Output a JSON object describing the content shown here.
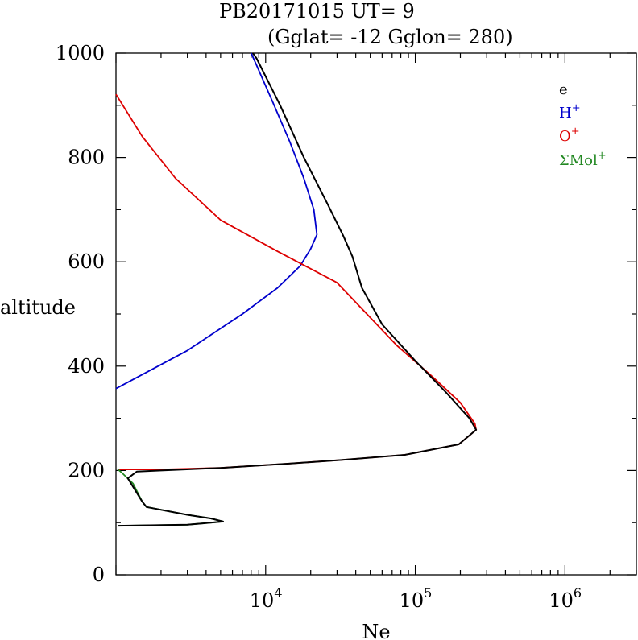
{
  "chart_data": {
    "type": "line",
    "title": "PB20171015   UT=  9",
    "subtitle": "(Gglat= -12   Gglon=  280)",
    "xlabel": "Ne",
    "ylabel": "altitude",
    "xscale": "log",
    "xlim": [
      1000,
      3000000
    ],
    "ylim": [
      0,
      1000
    ],
    "xtick_labels": [
      {
        "value": 10000,
        "base": "10",
        "exp": "4"
      },
      {
        "value": 100000,
        "base": "10",
        "exp": "5"
      },
      {
        "value": 1000000,
        "base": "10",
        "exp": "6"
      }
    ],
    "ytick_labels": [
      {
        "value": 0,
        "label": "0"
      },
      {
        "value": 200,
        "label": "200"
      },
      {
        "value": 400,
        "label": "400"
      },
      {
        "value": 600,
        "label": "600"
      },
      {
        "value": 800,
        "label": "800"
      },
      {
        "value": 1000,
        "label": "1000"
      }
    ],
    "grid": false,
    "legend_position": "top-right",
    "series": [
      {
        "name": "e-",
        "legend_base": "e",
        "legend_sup": "-",
        "color": "#000000",
        "points": [
          [
            1030,
            94
          ],
          [
            3000,
            96
          ],
          [
            5200,
            102
          ],
          [
            4300,
            108
          ],
          [
            3000,
            115
          ],
          [
            1600,
            130
          ],
          [
            1500,
            140
          ],
          [
            1200,
            185
          ],
          [
            1380,
            198
          ],
          [
            2000,
            200
          ],
          [
            5000,
            205
          ],
          [
            14000,
            213
          ],
          [
            32000,
            220
          ],
          [
            85000,
            230
          ],
          [
            195000,
            250
          ],
          [
            255000,
            278
          ],
          [
            230000,
            300
          ],
          [
            160000,
            350
          ],
          [
            100000,
            410
          ],
          [
            60000,
            480
          ],
          [
            44000,
            550
          ],
          [
            38000,
            610
          ],
          [
            33000,
            650
          ],
          [
            26000,
            710
          ],
          [
            18000,
            800
          ],
          [
            12500,
            900
          ],
          [
            8700,
            990
          ],
          [
            8200,
            1000
          ]
        ]
      },
      {
        "name": "H+",
        "legend_base": "H",
        "legend_sup": "+",
        "color": "#0000cc",
        "points": [
          [
            1000,
            357
          ],
          [
            3000,
            430
          ],
          [
            7000,
            500
          ],
          [
            12000,
            550
          ],
          [
            17000,
            592
          ],
          [
            20000,
            625
          ],
          [
            22000,
            652
          ],
          [
            21000,
            700
          ],
          [
            18000,
            760
          ],
          [
            14500,
            830
          ],
          [
            11000,
            910
          ],
          [
            8600,
            980
          ],
          [
            8000,
            1000
          ]
        ]
      },
      {
        "name": "O+",
        "legend_base": "O",
        "legend_sup": "+",
        "color": "#dd0000",
        "points": [
          [
            1000,
            921
          ],
          [
            1500,
            840
          ],
          [
            2500,
            760
          ],
          [
            5000,
            680
          ],
          [
            12000,
            620
          ],
          [
            30000,
            560
          ],
          [
            75000,
            440
          ],
          [
            130000,
            380
          ],
          [
            200000,
            330
          ],
          [
            250000,
            290
          ],
          [
            255000,
            278
          ],
          [
            195000,
            250
          ],
          [
            85000,
            230
          ],
          [
            32000,
            220
          ],
          [
            14000,
            213
          ],
          [
            5000,
            205
          ],
          [
            2000,
            202
          ],
          [
            1030,
            202
          ]
        ]
      },
      {
        "name": "ΣMol+",
        "legend_base": "ΣMol",
        "legend_sup": "+",
        "color": "#228822",
        "points": [
          [
            1030,
            94
          ],
          [
            3000,
            96
          ],
          [
            5200,
            102
          ],
          [
            4300,
            108
          ],
          [
            3000,
            115
          ],
          [
            1600,
            130
          ],
          [
            1500,
            140
          ],
          [
            1300,
            175
          ],
          [
            1100,
            195
          ],
          [
            1030,
            202
          ]
        ]
      }
    ]
  }
}
